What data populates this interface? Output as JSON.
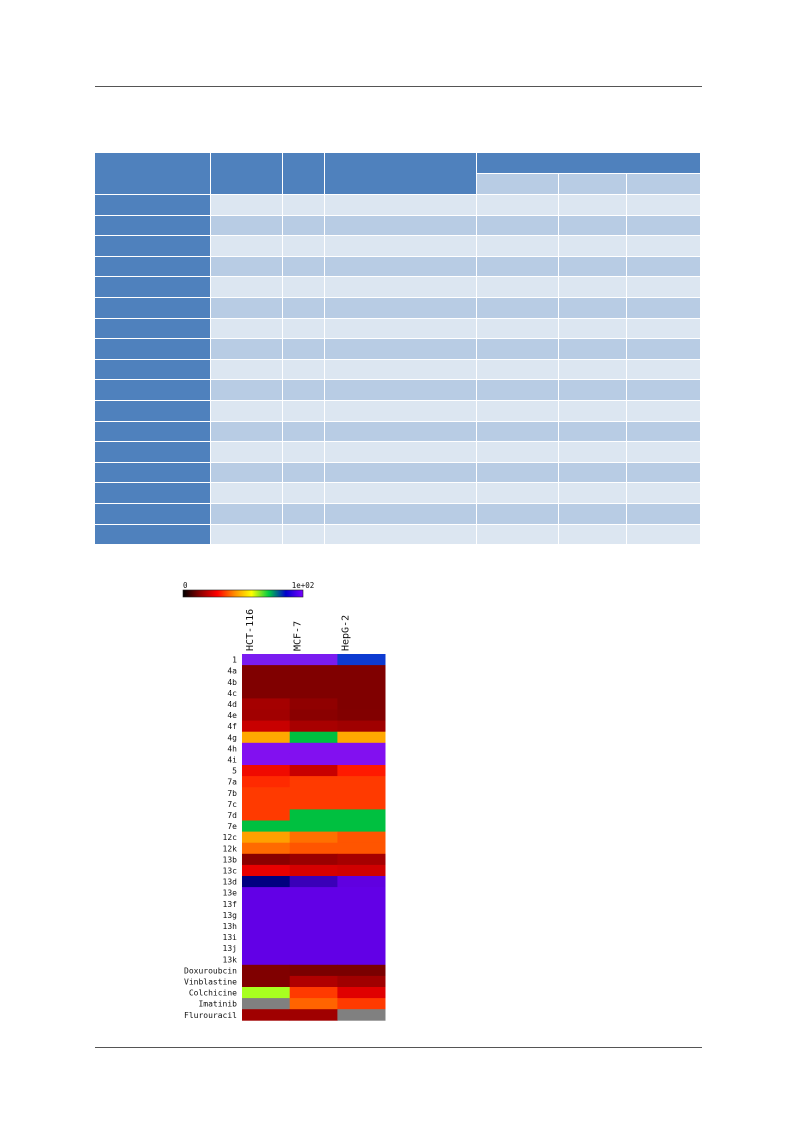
{
  "chart_data": {
    "type": "heatmap",
    "color_scale": {
      "min_label": "0",
      "max_label": "1e+02",
      "stops": [
        "#000000",
        "#8b0000",
        "#ff0000",
        "#ff8c00",
        "#ffff00",
        "#00cc44",
        "#0000cc",
        "#7700ff"
      ]
    },
    "columns": [
      "HCT-116",
      "MCF-7",
      "HepG-2"
    ],
    "rows": [
      {
        "label": "1",
        "colors": [
          "#7a1cf0",
          "#7a1cf0",
          "#0d3bd1"
        ]
      },
      {
        "label": "4a",
        "colors": [
          "#800000",
          "#800000",
          "#800000"
        ]
      },
      {
        "label": "4b",
        "colors": [
          "#800000",
          "#800000",
          "#800000"
        ]
      },
      {
        "label": "4c",
        "colors": [
          "#800000",
          "#800000",
          "#800000"
        ]
      },
      {
        "label": "4d",
        "colors": [
          "#a50000",
          "#900000",
          "#800000"
        ]
      },
      {
        "label": "4e",
        "colors": [
          "#a10000",
          "#8a0000",
          "#820000"
        ]
      },
      {
        "label": "4f",
        "colors": [
          "#c80000",
          "#a80000",
          "#a00000"
        ]
      },
      {
        "label": "4g",
        "colors": [
          "#ffa800",
          "#00c040",
          "#ffa800"
        ]
      },
      {
        "label": "4h",
        "colors": [
          "#8210f0",
          "#8210f0",
          "#8210f0"
        ]
      },
      {
        "label": "4i",
        "colors": [
          "#8210f0",
          "#8210f0",
          "#8210f0"
        ]
      },
      {
        "label": "5",
        "colors": [
          "#f00a00",
          "#c80000",
          "#ff1a00"
        ]
      },
      {
        "label": "7a",
        "colors": [
          "#ff2a00",
          "#ff3a00",
          "#ff3a00"
        ]
      },
      {
        "label": "7b",
        "colors": [
          "#ff3a00",
          "#ff3a00",
          "#ff3a00"
        ]
      },
      {
        "label": "7c",
        "colors": [
          "#ff3a00",
          "#ff3a00",
          "#ff3a00"
        ]
      },
      {
        "label": "7d",
        "colors": [
          "#ff3a00",
          "#00c040",
          "#00c040"
        ]
      },
      {
        "label": "7e",
        "colors": [
          "#00c040",
          "#00c040",
          "#00c040"
        ]
      },
      {
        "label": "12c",
        "colors": [
          "#ffa000",
          "#ff7000",
          "#ff5500"
        ]
      },
      {
        "label": "12k",
        "colors": [
          "#ff6a00",
          "#ff5500",
          "#ff5500"
        ]
      },
      {
        "label": "13b",
        "colors": [
          "#8a0000",
          "#9a0000",
          "#a60000"
        ]
      },
      {
        "label": "13c",
        "colors": [
          "#e80000",
          "#d60000",
          "#d00000"
        ]
      },
      {
        "label": "13d",
        "colors": [
          "#000080",
          "#3a00b8",
          "#6000e0"
        ]
      },
      {
        "label": "13e",
        "colors": [
          "#6200e6",
          "#6200e6",
          "#6200e6"
        ]
      },
      {
        "label": "13f",
        "colors": [
          "#6200e6",
          "#6200e6",
          "#6200e6"
        ]
      },
      {
        "label": "13g",
        "colors": [
          "#6200e6",
          "#6200e6",
          "#6200e6"
        ]
      },
      {
        "label": "13h",
        "colors": [
          "#6200e6",
          "#6200e6",
          "#6200e6"
        ]
      },
      {
        "label": "13i",
        "colors": [
          "#6200e6",
          "#6200e6",
          "#6200e6"
        ]
      },
      {
        "label": "13j",
        "colors": [
          "#6200e6",
          "#6200e6",
          "#6200e6"
        ]
      },
      {
        "label": "13k",
        "colors": [
          "#6200e6",
          "#6200e6",
          "#6200e6"
        ]
      },
      {
        "label": "Doxuroubcin",
        "colors": [
          "#800000",
          "#7a0000",
          "#7a0000"
        ]
      },
      {
        "label": "Vinblastine",
        "colors": [
          "#800000",
          "#b00000",
          "#a00000"
        ]
      },
      {
        "label": "Colchicine",
        "colors": [
          "#a8ff20",
          "#ff3a00",
          "#e00000"
        ]
      },
      {
        "label": "Imatinib",
        "colors": [
          "#808080",
          "#ff6400",
          "#ff3a00"
        ]
      },
      {
        "label": "Flurouracil",
        "colors": [
          "#a00000",
          "#a00000",
          "#808080"
        ]
      }
    ]
  }
}
